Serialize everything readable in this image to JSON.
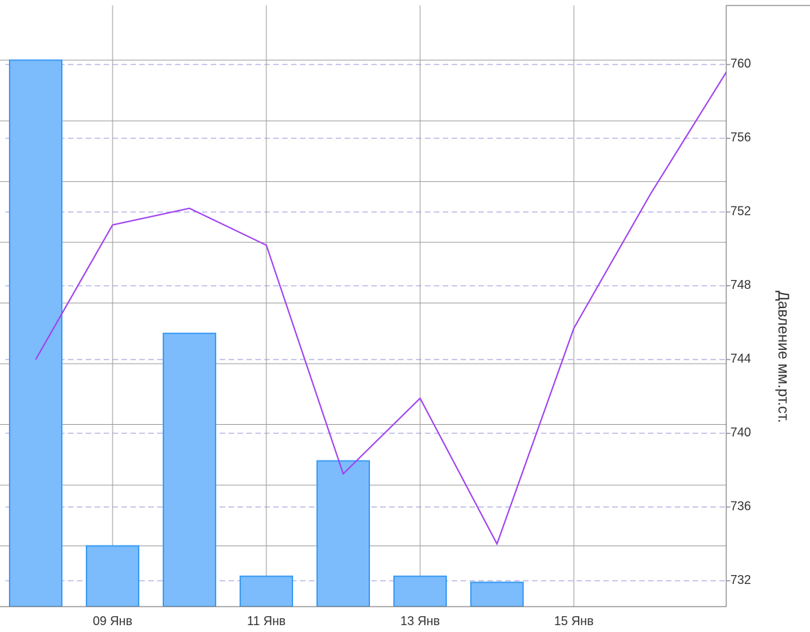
{
  "chart_data": {
    "type": "bar_line",
    "categories": [
      null,
      "09 Янв",
      null,
      "11 Янв",
      null,
      "13 Янв",
      null,
      "15 Янв",
      null,
      null
    ],
    "series": [
      {
        "type": "bar",
        "color": "#7cbcfc",
        "values": [
          9.0,
          1.0,
          4.5,
          0.5,
          2.4,
          0.5,
          0.4,
          null,
          null,
          null
        ]
      },
      {
        "type": "line",
        "color": "#a040f0",
        "axis": "y2",
        "values": [
          744.0,
          751.3,
          752.2,
          750.2,
          737.8,
          741.9,
          734.0,
          745.7,
          753.0,
          759.7
        ]
      }
    ],
    "ylim": [
      0,
      9.9
    ],
    "yticks": [
      0,
      1,
      2,
      3,
      4,
      5,
      6,
      7,
      8,
      9
    ],
    "y2lim": [
      730.6,
      763.2
    ],
    "y2ticks": [
      732,
      736,
      740,
      744,
      748,
      752,
      756,
      760
    ],
    "y2label": "Давление мм.рт.ст.",
    "grid": true
  }
}
